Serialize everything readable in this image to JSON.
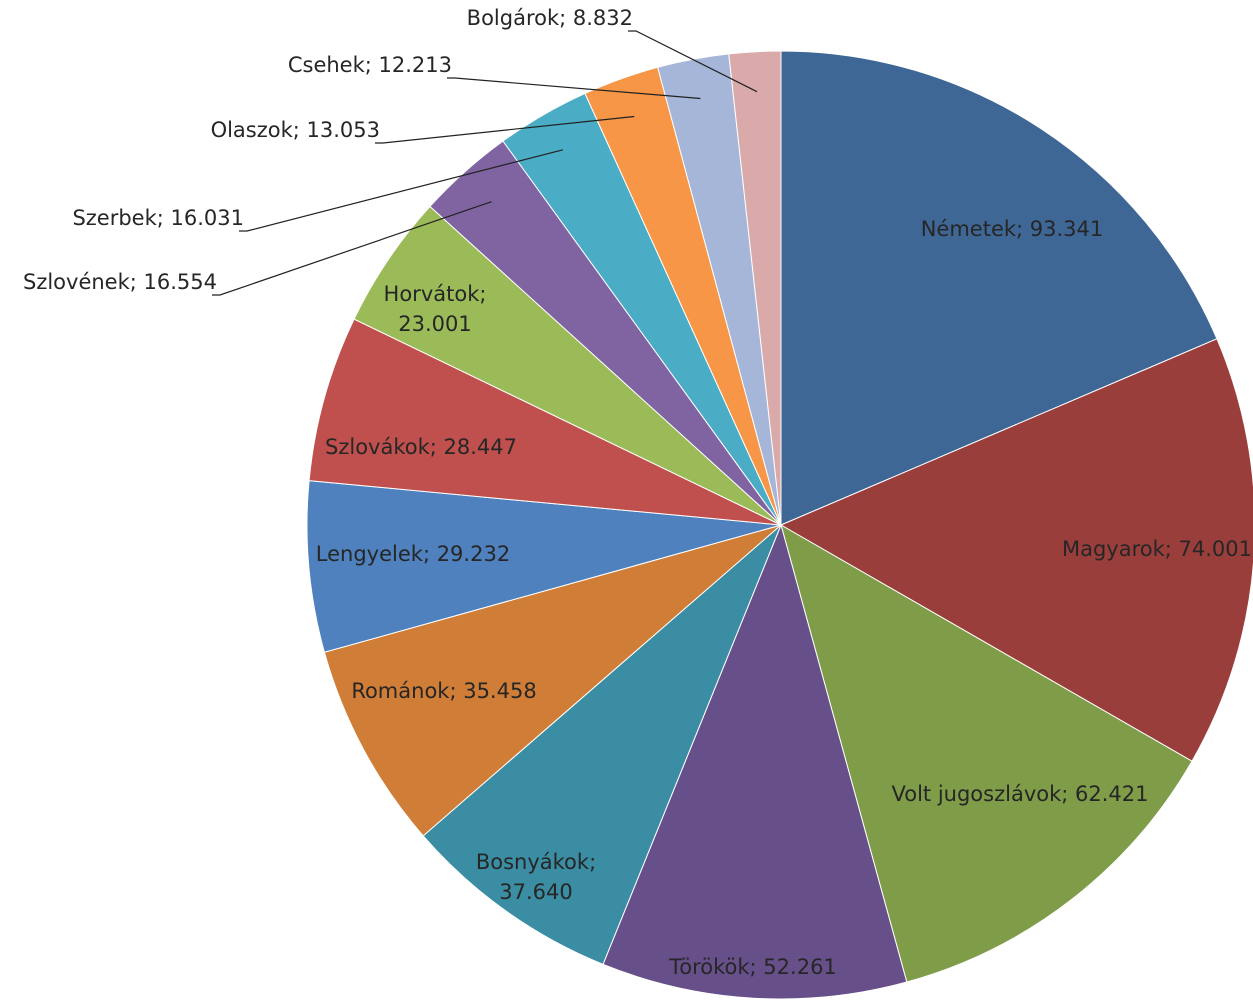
{
  "chart_data": {
    "type": "pie",
    "title": "",
    "legend": "none",
    "slices": [
      {
        "label": "Németek; 93.341",
        "name": "Németek",
        "value": 93341,
        "color": "#3E6796"
      },
      {
        "label": "Magyarok; 74.001",
        "name": "Magyarok",
        "value": 74001,
        "color": "#9A3E3C"
      },
      {
        "label": "Volt jugoszlávok; 62.421",
        "name": "Volt jugoszlávok",
        "value": 62421,
        "color": "#7F9C49"
      },
      {
        "label": "Törökök; 52.261",
        "name": "Törökök",
        "value": 52261,
        "color": "#674F89"
      },
      {
        "label": "Bosnyákok;",
        "label2": "37.640",
        "name": "Bosnyákok",
        "value": 37640,
        "color": "#3A8DA2"
      },
      {
        "label": "Románok; 35.458",
        "name": "Románok",
        "value": 35458,
        "color": "#D07D37"
      },
      {
        "label": "Lengyelek; 29.232",
        "name": "Lengyelek",
        "value": 29232,
        "color": "#4E81BD"
      },
      {
        "label": "Szlovákok; 28.447",
        "name": "Szlovákok",
        "value": 28447,
        "color": "#C0504D"
      },
      {
        "label": "Horvátok;",
        "label2": "23.001",
        "name": "Horvátok",
        "value": 23001,
        "color": "#9BBB59"
      },
      {
        "label": "Szlovének; 16.554",
        "name": "Szlovének",
        "value": 16554,
        "color": "#8064A2"
      },
      {
        "label": "Szerbek; 16.031",
        "name": "Szerbek",
        "value": 16031,
        "color": "#4BACC6"
      },
      {
        "label": "Olaszok; 13.053",
        "name": "Olaszok",
        "value": 13053,
        "color": "#F79646"
      },
      {
        "label": "Csehek; 12.213",
        "name": "Csehek",
        "value": 12213,
        "color": "#A5B6D8"
      },
      {
        "label": "Bolgárok; 8.832",
        "name": "Bolgárok",
        "value": 8832,
        "color": "#DAA9A9"
      }
    ]
  }
}
